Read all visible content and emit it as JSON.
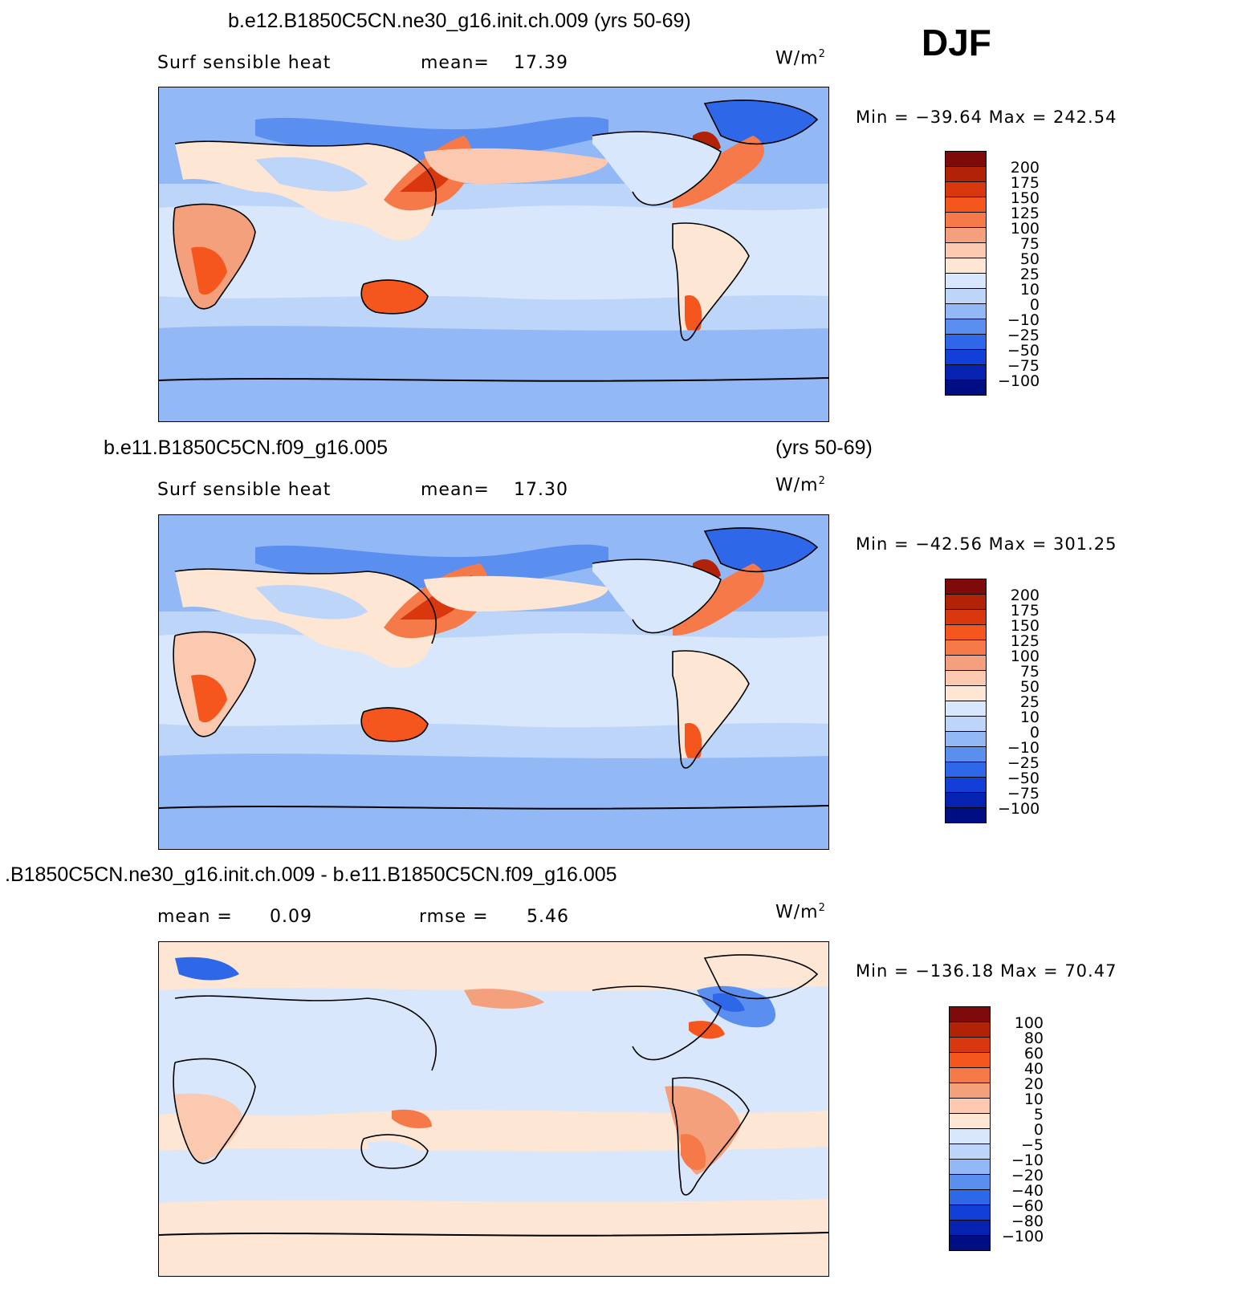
{
  "season": "DJF",
  "units_base": "W/m",
  "units_exp": "2",
  "panels": [
    {
      "title": "b.e12.B1850C5CN.ne30_g16.init.ch.009 (yrs 50-69)",
      "left_label": "Surf  sensible  heat",
      "stat_label": "mean=",
      "stat_value": "17.39",
      "minmax": "Min  =  −39.64  Max  =  242.54",
      "colorbar": {
        "labels": [
          "200",
          "175",
          "150",
          "125",
          "100",
          "75",
          "50",
          "25",
          "10",
          "0",
          "−10",
          "−25",
          "−50",
          "−75",
          "−100"
        ],
        "colors": [
          "#7f0a0a",
          "#b22206",
          "#d9380f",
          "#f5561d",
          "#f6794a",
          "#f5a07c",
          "#fac9b0",
          "#fde6d3",
          "#d8e7fb",
          "#bcd5f8",
          "#92b8f6",
          "#5a8ff0",
          "#2f67e9",
          "#123fd8",
          "#0622b0",
          "#000e84"
        ]
      }
    },
    {
      "title_left": "b.e11.B1850C5CN.f09_g16.005",
      "title_right": "(yrs 50-69)",
      "left_label": "Surf  sensible  heat",
      "stat_label": "mean=",
      "stat_value": "17.30",
      "minmax": "Min  =  −42.56  Max  =  301.25",
      "colorbar": {
        "labels": [
          "200",
          "175",
          "150",
          "125",
          "100",
          "75",
          "50",
          "25",
          "10",
          "0",
          "−10",
          "−25",
          "−50",
          "−75",
          "−100"
        ],
        "colors": [
          "#7f0a0a",
          "#b22206",
          "#d9380f",
          "#f5561d",
          "#f6794a",
          "#f5a07c",
          "#fac9b0",
          "#fde6d3",
          "#d8e7fb",
          "#bcd5f8",
          "#92b8f6",
          "#5a8ff0",
          "#2f67e9",
          "#123fd8",
          "#0622b0",
          "#000e84"
        ]
      }
    },
    {
      "title": ".B1850C5CN.ne30_g16.init.ch.009 - b.e11.B1850C5CN.f09_g16.005",
      "left_label": "mean  =",
      "left_value": "0.09",
      "stat_label": "rmse  =",
      "stat_value": "5.46",
      "minmax": "Min  =  −136.18  Max  =   70.47",
      "colorbar": {
        "labels": [
          "100",
          "80",
          "60",
          "40",
          "20",
          "10",
          "5",
          "0",
          "−5",
          "−10",
          "−20",
          "−40",
          "−60",
          "−80",
          "−100"
        ],
        "colors": [
          "#7f0a0a",
          "#b22206",
          "#d9380f",
          "#f5561d",
          "#f6794a",
          "#f5a07c",
          "#fac9b0",
          "#fde6d3",
          "#d8e7fb",
          "#bcd5f8",
          "#92b8f6",
          "#5a8ff0",
          "#2f67e9",
          "#123fd8",
          "#0622b0",
          "#000e84"
        ]
      }
    }
  ]
}
